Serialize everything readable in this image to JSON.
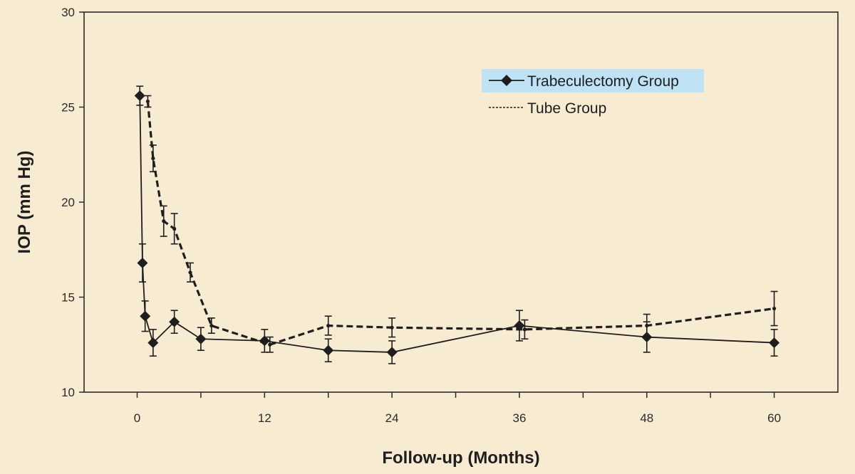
{
  "chart_data": {
    "type": "line",
    "title": "",
    "xlabel": "Follow-up (Months)",
    "ylabel": "IOP (mm Hg)",
    "xlim": [
      -5,
      66
    ],
    "ylim": [
      10,
      30
    ],
    "x_ticks": [
      0,
      12,
      24,
      36,
      48,
      60
    ],
    "y_ticks": [
      10,
      15,
      20,
      25,
      30
    ],
    "grid": false,
    "legend_position": "top-right",
    "series": [
      {
        "name": "Trabeculectomy Group",
        "style": "solid",
        "marker": "diamond",
        "color": "#1e1e1e",
        "x": [
          0.25,
          0.5,
          0.75,
          1.5,
          3.5,
          6,
          12,
          18,
          24,
          36,
          48,
          60
        ],
        "y": [
          25.6,
          16.8,
          14.0,
          12.6,
          13.7,
          12.8,
          12.7,
          12.2,
          12.1,
          13.5,
          12.9,
          12.6
        ],
        "err": [
          0.5,
          1.0,
          0.8,
          0.7,
          0.6,
          0.6,
          0.6,
          0.6,
          0.6,
          0.8,
          0.8,
          0.7
        ]
      },
      {
        "name": "Tube Group",
        "style": "dashed",
        "marker": "dot",
        "color": "#1e1e1e",
        "x": [
          1,
          1.5,
          2.5,
          3.5,
          5,
          7,
          12.5,
          18,
          24,
          36.5,
          48,
          60
        ],
        "y": [
          25.3,
          22.3,
          19.0,
          18.6,
          16.3,
          13.5,
          12.5,
          13.5,
          13.4,
          13.3,
          13.5,
          14.4
        ],
        "err": [
          0.3,
          0.7,
          0.8,
          0.8,
          0.5,
          0.4,
          0.4,
          0.5,
          0.5,
          0.5,
          0.6,
          0.9
        ]
      }
    ]
  }
}
